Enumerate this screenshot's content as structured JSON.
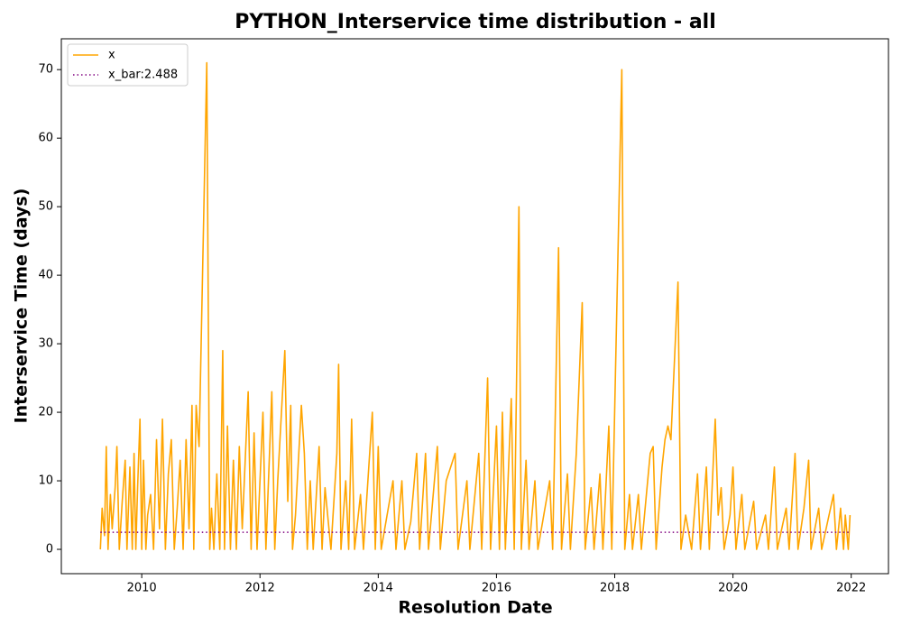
{
  "chart_data": {
    "type": "line",
    "title": "PYTHON_Interservice time distribution - all",
    "xlabel": "Resolution Date",
    "ylabel": "Interservice Time (days)",
    "legend": "upper left",
    "xlim": [
      2008.64,
      2022.63
    ],
    "ylim": [
      -3.55,
      74.5
    ],
    "xticks": [
      2010,
      2012,
      2014,
      2016,
      2018,
      2020,
      2022
    ],
    "yticks": [
      0,
      10,
      20,
      30,
      40,
      50,
      60,
      70
    ],
    "series": [
      {
        "name": "x",
        "color": "#ffa500",
        "style": "solid",
        "x": [
          2009.3,
          2009.33,
          2009.37,
          2009.4,
          2009.43,
          2009.47,
          2009.5,
          2009.55,
          2009.58,
          2009.62,
          2009.67,
          2009.72,
          2009.75,
          2009.8,
          2009.84,
          2009.87,
          2009.9,
          2009.93,
          2009.97,
          2010.0,
          2010.03,
          2010.07,
          2010.1,
          2010.15,
          2010.2,
          2010.25,
          2010.3,
          2010.35,
          2010.4,
          2010.45,
          2010.5,
          2010.55,
          2010.6,
          2010.65,
          2010.7,
          2010.75,
          2010.8,
          2010.85,
          2010.88,
          2010.92,
          2010.97,
          2011.1,
          2011.15,
          2011.18,
          2011.22,
          2011.27,
          2011.32,
          2011.37,
          2011.4,
          2011.45,
          2011.5,
          2011.55,
          2011.6,
          2011.65,
          2011.7,
          2011.8,
          2011.85,
          2011.9,
          2011.95,
          2012.05,
          2012.1,
          2012.2,
          2012.25,
          2012.3,
          2012.42,
          2012.47,
          2012.52,
          2012.55,
          2012.6,
          2012.7,
          2012.75,
          2012.8,
          2012.85,
          2012.9,
          2013.0,
          2013.05,
          2013.1,
          2013.2,
          2013.3,
          2013.33,
          2013.37,
          2013.45,
          2013.5,
          2013.55,
          2013.6,
          2013.7,
          2013.75,
          2013.9,
          2013.95,
          2014.0,
          2014.05,
          2014.15,
          2014.25,
          2014.3,
          2014.4,
          2014.45,
          2014.55,
          2014.65,
          2014.7,
          2014.8,
          2014.85,
          2015.0,
          2015.05,
          2015.15,
          2015.3,
          2015.35,
          2015.5,
          2015.55,
          2015.7,
          2015.75,
          2015.85,
          2015.9,
          2016.0,
          2016.05,
          2016.1,
          2016.15,
          2016.25,
          2016.3,
          2016.38,
          2016.42,
          2016.5,
          2016.55,
          2016.65,
          2016.7,
          2016.9,
          2016.95,
          2017.05,
          2017.1,
          2017.2,
          2017.25,
          2017.35,
          2017.45,
          2017.5,
          2017.6,
          2017.65,
          2017.75,
          2017.8,
          2017.9,
          2017.95,
          2018.12,
          2018.17,
          2018.25,
          2018.3,
          2018.4,
          2018.45,
          2018.6,
          2018.65,
          2018.7,
          2018.8,
          2018.85,
          2018.9,
          2018.95,
          2019.07,
          2019.12,
          2019.2,
          2019.3,
          2019.4,
          2019.45,
          2019.55,
          2019.6,
          2019.7,
          2019.75,
          2019.8,
          2019.85,
          2019.95,
          2020.0,
          2020.05,
          2020.15,
          2020.2,
          2020.35,
          2020.4,
          2020.55,
          2020.6,
          2020.7,
          2020.75,
          2020.9,
          2020.95,
          2021.05,
          2021.1,
          2021.2,
          2021.28,
          2021.32,
          2021.45,
          2021.5,
          2021.6,
          2021.7,
          2021.75,
          2021.82,
          2021.87,
          2021.9,
          2021.95,
          2021.98
        ],
        "values": [
          0,
          6,
          2,
          15,
          0,
          8,
          3,
          9,
          15,
          0,
          7,
          13,
          0,
          12,
          0,
          14,
          0,
          9,
          19,
          0,
          13,
          0,
          5,
          8,
          0,
          16,
          3,
          19,
          0,
          11,
          16,
          0,
          6,
          13,
          0,
          16,
          3,
          21,
          0,
          21,
          15,
          71,
          0,
          6,
          0,
          11,
          0,
          29,
          0,
          18,
          0,
          13,
          0,
          15,
          3,
          23,
          0,
          17,
          0,
          20,
          0,
          23,
          0,
          10,
          29,
          7,
          21,
          0,
          5,
          21,
          14,
          0,
          10,
          0,
          15,
          0,
          9,
          0,
          14,
          27,
          0,
          10,
          0,
          19,
          0,
          8,
          0,
          20,
          0,
          15,
          0,
          5,
          10,
          0,
          10,
          0,
          4,
          14,
          0,
          14,
          0,
          15,
          0,
          10,
          14,
          0,
          10,
          0,
          14,
          0,
          25,
          0,
          18,
          0,
          20,
          0,
          22,
          0,
          50,
          0,
          13,
          0,
          10,
          0,
          10,
          0,
          44,
          0,
          11,
          0,
          14,
          36,
          0,
          9,
          0,
          11,
          0,
          18,
          0,
          70,
          0,
          8,
          0,
          8,
          0,
          14,
          15,
          0,
          12,
          16,
          18,
          16,
          39,
          0,
          5,
          0,
          11,
          0,
          12,
          0,
          19,
          5,
          9,
          0,
          5,
          12,
          0,
          8,
          0,
          7,
          0,
          5,
          0,
          12,
          0,
          6,
          0,
          14,
          0,
          6,
          13,
          0,
          6,
          0,
          4,
          8,
          0,
          6,
          0,
          5,
          0,
          5
        ]
      },
      {
        "name": "x_bar:2.488",
        "color": "#800080",
        "style": "dotted",
        "x": [
          2009.3,
          2021.98
        ],
        "values": [
          2.488,
          2.488
        ]
      }
    ]
  }
}
